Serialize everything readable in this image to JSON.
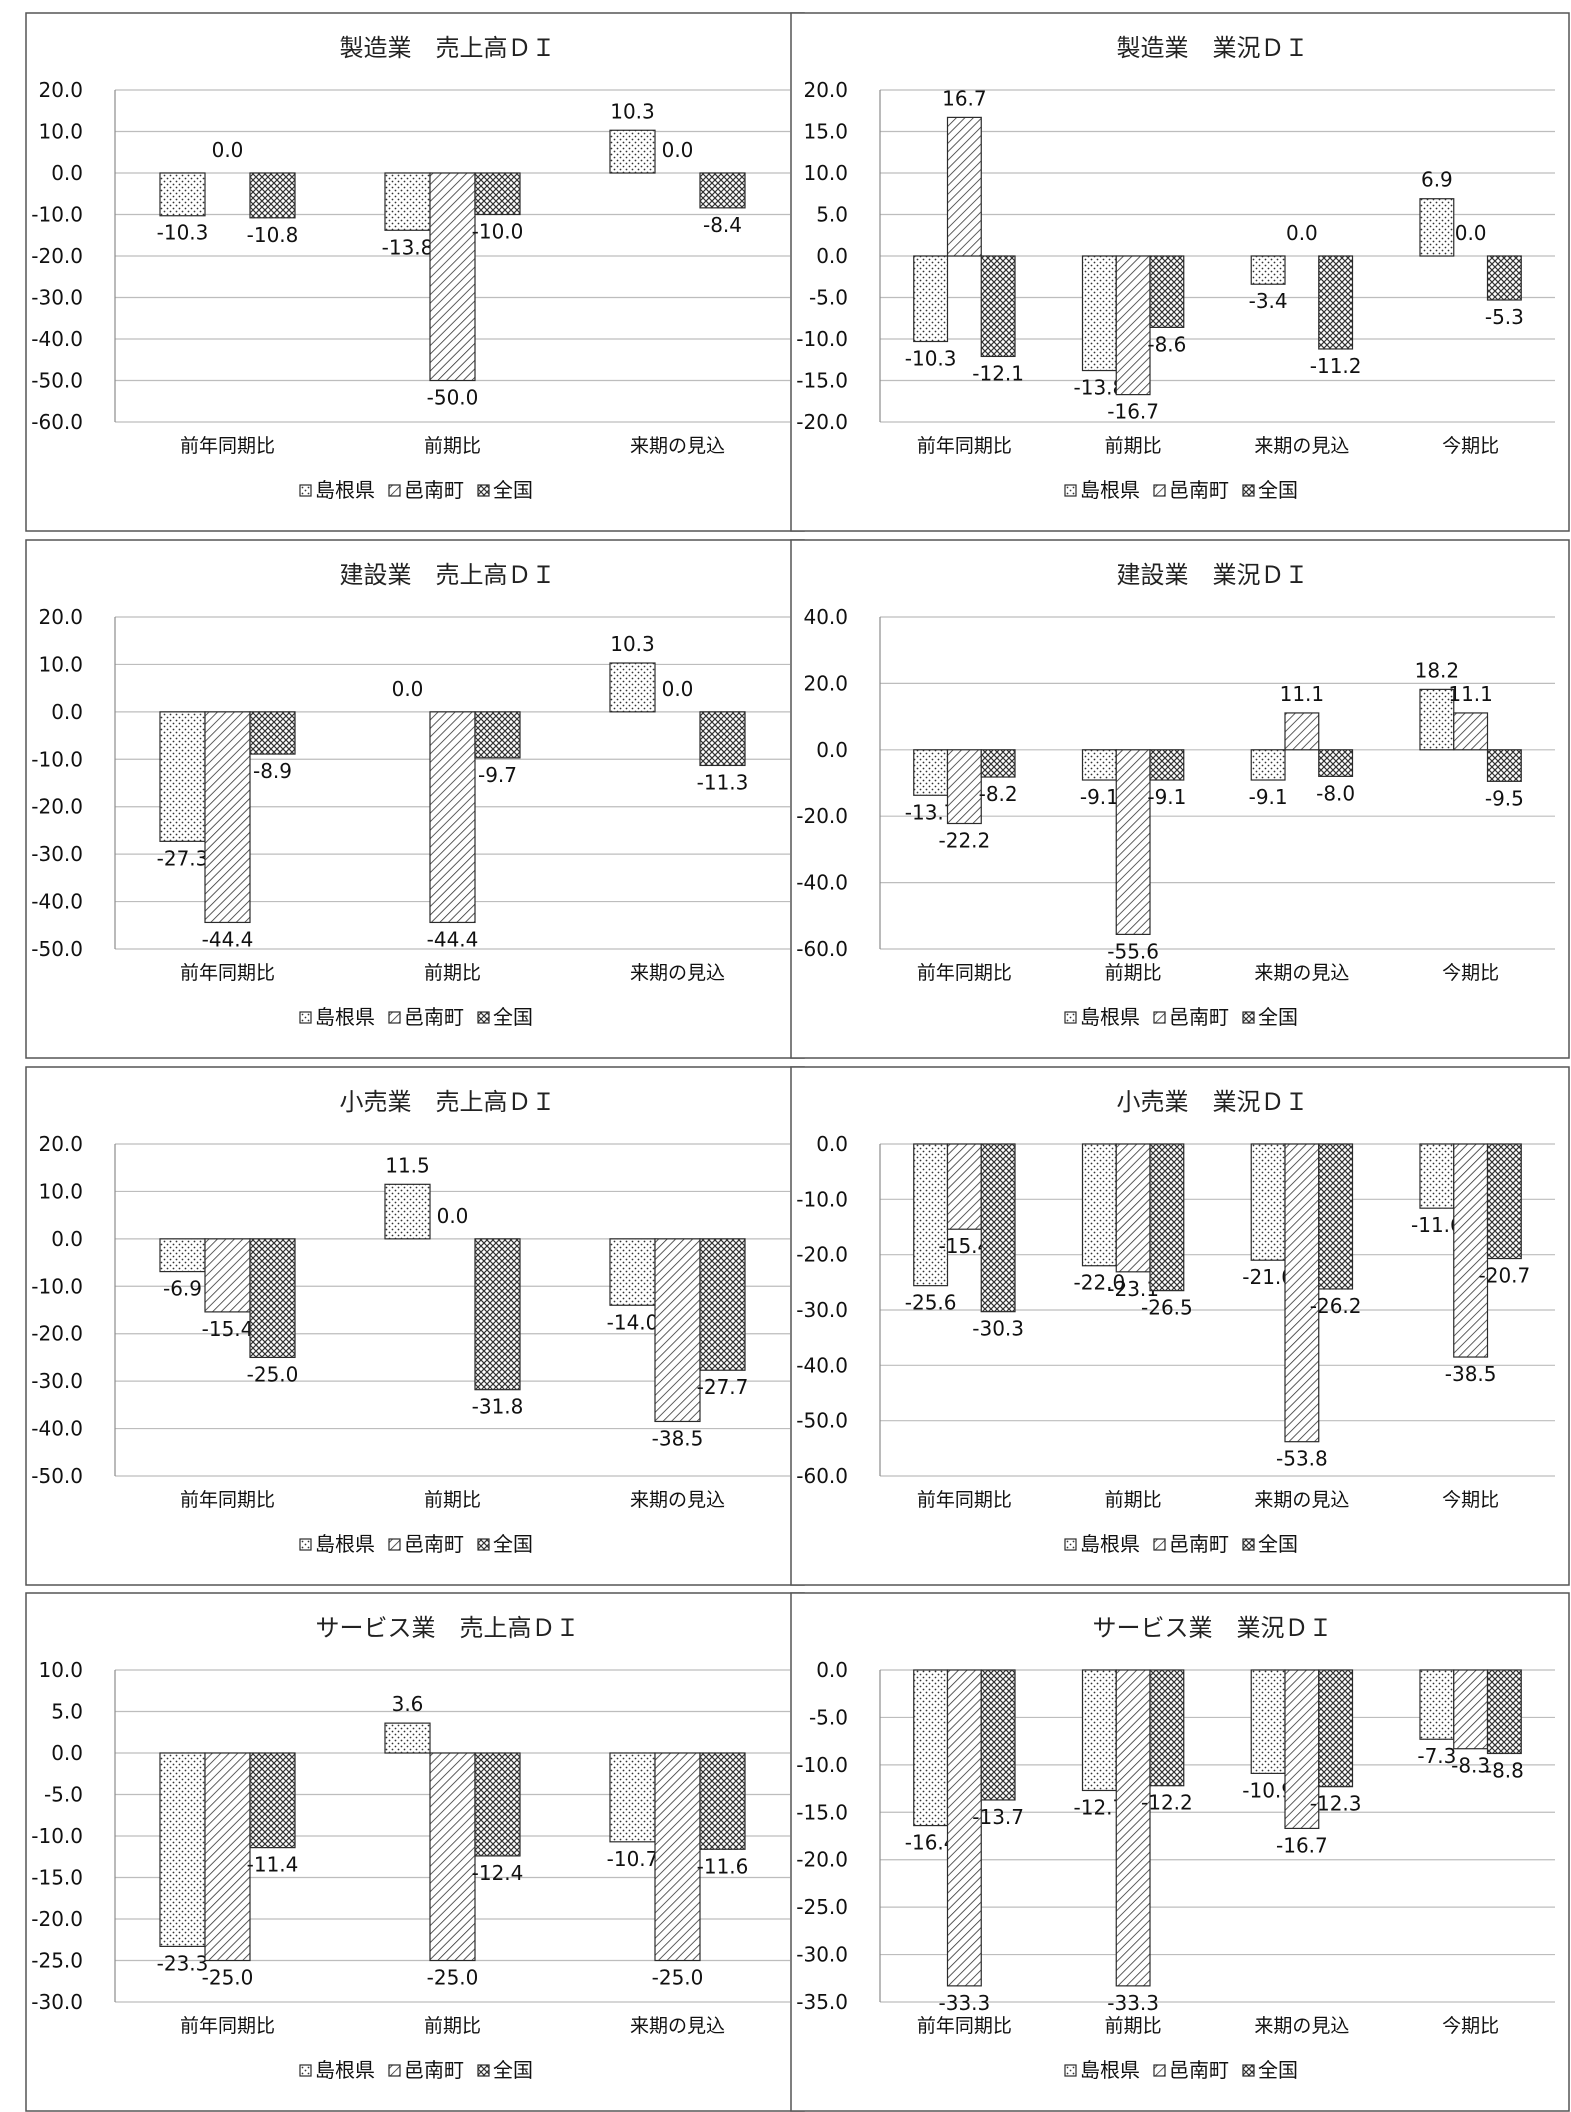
{
  "legend": [
    "島根県",
    "邑南町",
    "全国"
  ],
  "chart_data": [
    {
      "type": "bar",
      "title": "製造業　売上高ＤＩ",
      "categories": [
        "前年同期比",
        "前期比",
        "来期の見込"
      ],
      "series": [
        {
          "name": "島根県",
          "values": [
            -10.3,
            -13.8,
            10.3
          ]
        },
        {
          "name": "邑南町",
          "values": [
            0.0,
            -50.0,
            0.0
          ]
        },
        {
          "name": "全国",
          "values": [
            -10.8,
            -10.0,
            -8.4
          ]
        }
      ],
      "labels": [
        [
          "-10.3",
          "-13.8",
          "10.3"
        ],
        [
          "0.0",
          "-50.0",
          "0.0"
        ],
        [
          "-10.8",
          "-10.0",
          "-8.4"
        ]
      ],
      "yticks": [
        "20.0",
        "10.0",
        "0.0",
        "-10.0",
        "-20.0",
        "-30.0",
        "-40.0",
        "-50.0",
        "-60.0"
      ],
      "ylim": [
        -60,
        20
      ],
      "ystep": 10,
      "grid": true,
      "legend_position": "bottom"
    },
    {
      "type": "bar",
      "title": "製造業　業況ＤＩ",
      "categories": [
        "前年同期比",
        "前期比",
        "来期の見込",
        "今期比"
      ],
      "series": [
        {
          "name": "島根県",
          "values": [
            -10.3,
            -13.8,
            -3.4,
            6.9
          ]
        },
        {
          "name": "邑南町",
          "values": [
            16.7,
            -16.7,
            0.0,
            0.0
          ]
        },
        {
          "name": "全国",
          "values": [
            -12.1,
            -8.6,
            -11.2,
            -5.3
          ]
        }
      ],
      "labels": [
        [
          "-10.3",
          "-13.8",
          "-3.4",
          "6.9"
        ],
        [
          "16.7",
          "-16.7",
          "0.0",
          "0.0"
        ],
        [
          "-12.1",
          "-8.6",
          "-11.2",
          "-5.3"
        ]
      ],
      "yticks": [
        "20.0",
        "15.0",
        "10.0",
        "5.0",
        "0.0",
        "-5.0",
        "-10.0",
        "-15.0",
        "-20.0"
      ],
      "ylim": [
        -20,
        20
      ],
      "ystep": 5,
      "grid": true,
      "legend_position": "bottom"
    },
    {
      "type": "bar",
      "title": "建設業　売上高ＤＩ",
      "categories": [
        "前年同期比",
        "前期比",
        "来期の見込"
      ],
      "series": [
        {
          "name": "島根県",
          "values": [
            -27.3,
            0.0,
            10.3
          ]
        },
        {
          "name": "邑南町",
          "values": [
            -44.4,
            -44.4,
            0.0
          ]
        },
        {
          "name": "全国",
          "values": [
            -8.9,
            -9.7,
            -11.3
          ]
        }
      ],
      "labels": [
        [
          "-27.3",
          "0.0",
          "10.3"
        ],
        [
          "-44.4",
          "-44.4",
          "0.0"
        ],
        [
          "-8.9",
          "-9.7",
          "-11.3"
        ]
      ],
      "yticks": [
        "20.0",
        "10.0",
        "0.0",
        "-10.0",
        "-20.0",
        "-30.0",
        "-40.0",
        "-50.0"
      ],
      "ylim": [
        -50,
        20
      ],
      "ystep": 10,
      "grid": true,
      "legend_position": "bottom"
    },
    {
      "type": "bar",
      "title": "建設業　業況ＤＩ",
      "categories": [
        "前年同期比",
        "前期比",
        "来期の見込",
        "今期比"
      ],
      "series": [
        {
          "name": "島根県",
          "values": [
            -13.7,
            -9.1,
            -9.1,
            18.2
          ]
        },
        {
          "name": "邑南町",
          "values": [
            -22.2,
            -55.6,
            11.1,
            11.1
          ]
        },
        {
          "name": "全国",
          "values": [
            -8.2,
            -9.1,
            -8.0,
            -9.5
          ]
        }
      ],
      "labels": [
        [
          "-13.7",
          "-9.1",
          "-9.1",
          "18.2"
        ],
        [
          "-22.2",
          "-55.6",
          "11.1",
          "11.1"
        ],
        [
          "-8.2",
          "-9.1",
          "-8.0",
          "-9.5"
        ]
      ],
      "yticks": [
        "40.0",
        "20.0",
        "0.0",
        "-20.0",
        "-40.0",
        "-60.0"
      ],
      "ylim": [
        -60,
        40
      ],
      "ystep": 20,
      "grid": true,
      "legend_position": "bottom"
    },
    {
      "type": "bar",
      "title": "小売業　売上高ＤＩ",
      "categories": [
        "前年同期比",
        "前期比",
        "来期の見込"
      ],
      "series": [
        {
          "name": "島根県",
          "values": [
            -6.9,
            11.5,
            -14.0
          ]
        },
        {
          "name": "邑南町",
          "values": [
            -15.4,
            0.0,
            -38.5
          ]
        },
        {
          "name": "全国",
          "values": [
            -25.0,
            -31.8,
            -27.7
          ]
        }
      ],
      "labels": [
        [
          "-6.9",
          "11.5",
          "-14.0"
        ],
        [
          "-15.4",
          "0.0",
          "-38.5"
        ],
        [
          "-25.0",
          "-31.8",
          "-27.7"
        ]
      ],
      "yticks": [
        "20.0",
        "10.0",
        "0.0",
        "-10.0",
        "-20.0",
        "-30.0",
        "-40.0",
        "-50.0"
      ],
      "ylim": [
        -50,
        20
      ],
      "ystep": 10,
      "grid": true,
      "legend_position": "bottom"
    },
    {
      "type": "bar",
      "title": "小売業　業況ＤＩ",
      "categories": [
        "前年同期比",
        "前期比",
        "来期の見込",
        "今期比"
      ],
      "series": [
        {
          "name": "島根県",
          "values": [
            -25.6,
            -22.0,
            -21.0,
            -11.6
          ]
        },
        {
          "name": "邑南町",
          "values": [
            -15.4,
            -23.1,
            -53.8,
            -38.5
          ]
        },
        {
          "name": "全国",
          "values": [
            -30.3,
            -26.5,
            -26.2,
            -20.7
          ]
        }
      ],
      "labels": [
        [
          "-25.6",
          "-22.0",
          "-21.0",
          "-11.6"
        ],
        [
          "-15.4",
          "-23.1",
          "-53.8",
          "-38.5"
        ],
        [
          "-30.3",
          "-26.5",
          "-26.2",
          "-20.7"
        ]
      ],
      "yticks": [
        "0.0",
        "-10.0",
        "-20.0",
        "-30.0",
        "-40.0",
        "-50.0",
        "-60.0"
      ],
      "ylim": [
        -60,
        0
      ],
      "ystep": 10,
      "grid": true,
      "legend_position": "bottom"
    },
    {
      "type": "bar",
      "title": "サービス業　売上高ＤＩ",
      "categories": [
        "前年同期比",
        "前期比",
        "来期の見込"
      ],
      "series": [
        {
          "name": "島根県",
          "values": [
            -23.3,
            3.6,
            -10.7
          ]
        },
        {
          "name": "邑南町",
          "values": [
            -25.0,
            -25.0,
            -25.0
          ]
        },
        {
          "name": "全国",
          "values": [
            -11.4,
            -12.4,
            -11.6
          ]
        }
      ],
      "labels": [
        [
          "-23.3",
          "3.6",
          "-10.7"
        ],
        [
          "-25.0",
          "-25.0",
          "-25.0"
        ],
        [
          "-11.4",
          "-12.4",
          "-11.6"
        ]
      ],
      "yticks": [
        "10.0",
        "5.0",
        "0.0",
        "-5.0",
        "-10.0",
        "-15.0",
        "-20.0",
        "-25.0",
        "-30.0"
      ],
      "ylim": [
        -30,
        10
      ],
      "ystep": 5,
      "grid": true,
      "legend_position": "bottom"
    },
    {
      "type": "bar",
      "title": "サービス業　業況ＤＩ",
      "categories": [
        "前年同期比",
        "前期比",
        "来期の見込",
        "今期比"
      ],
      "series": [
        {
          "name": "島根県",
          "values": [
            -16.4,
            -12.7,
            -10.9,
            -7.3
          ]
        },
        {
          "name": "邑南町",
          "values": [
            -33.3,
            -33.3,
            -16.7,
            -8.3
          ]
        },
        {
          "name": "全国",
          "values": [
            -13.7,
            -12.2,
            -12.3,
            -8.8
          ]
        }
      ],
      "labels": [
        [
          "-16.4",
          "-12.7",
          "-10.9",
          "-7.3"
        ],
        [
          "-33.3",
          "-33.3",
          "-16.7",
          "-8.3"
        ],
        [
          "-13.7",
          "-12.2",
          "-12.3",
          "-8.8"
        ]
      ],
      "yticks": [
        "0.0",
        "-5.0",
        "-10.0",
        "-15.0",
        "-20.0",
        "-25.0",
        "-30.0",
        "-35.0"
      ],
      "ylim": [
        -35,
        0
      ],
      "ystep": 5,
      "grid": true,
      "legend_position": "bottom"
    }
  ]
}
